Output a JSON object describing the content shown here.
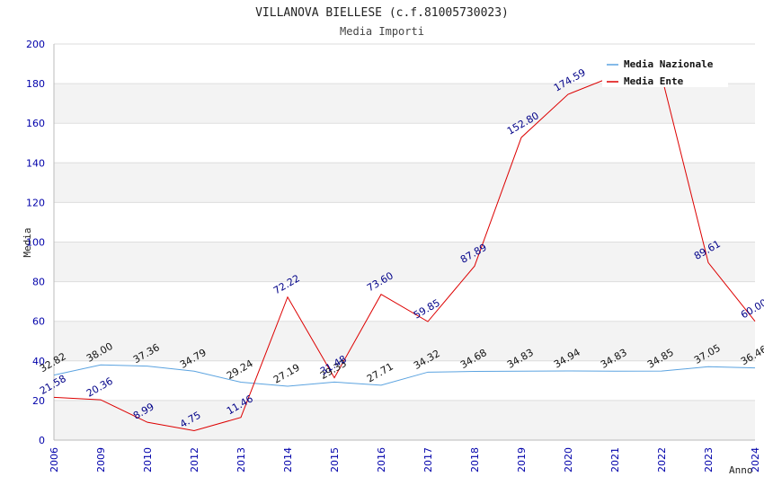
{
  "chart_data": {
    "type": "line",
    "title": "VILLANOVA BIELLESE (c.f.81005730023)",
    "subtitle": "Media Importi",
    "xlabel": "Anno",
    "ylabel": "Media",
    "ylim": [
      0,
      200
    ],
    "yticks": [
      "0",
      "20",
      "40",
      "60",
      "80",
      "100",
      "120",
      "140",
      "160",
      "180",
      "200"
    ],
    "categories": [
      "2006",
      "2009",
      "2010",
      "2012",
      "2013",
      "2014",
      "2015",
      "2016",
      "2017",
      "2018",
      "2019",
      "2020",
      "2021",
      "2022",
      "2023",
      "2024"
    ],
    "legend_position": "top-right",
    "series": [
      {
        "name": "Media Nazionale",
        "color": "#5ba3e0",
        "values": [
          32.82,
          38.0,
          37.36,
          34.79,
          29.24,
          27.19,
          29.33,
          27.71,
          34.32,
          34.68,
          34.83,
          34.94,
          34.83,
          34.85,
          37.05,
          36.46
        ],
        "labels": [
          "32.82",
          "38.00",
          "37.36",
          "34.79",
          "29.24",
          "27.19",
          "29.33",
          "27.71",
          "34.32",
          "34.68",
          "34.83",
          "34.94",
          "34.83",
          "34.85",
          "37.05",
          "36.46"
        ]
      },
      {
        "name": "Media Ente",
        "color": "#dd0000",
        "values": [
          21.58,
          20.36,
          8.99,
          4.75,
          11.46,
          72.22,
          31.48,
          73.6,
          59.85,
          87.89,
          152.8,
          174.59,
          184.0,
          184.0,
          89.61,
          60.0
        ],
        "labels": [
          "21.58",
          "20.36",
          "8.99",
          "4.75",
          "11.46",
          "72.22",
          "31.48",
          "73.60",
          "59.85",
          "87.89",
          "152.80",
          "174.59",
          "",
          "",
          "89.61",
          "60.00"
        ]
      }
    ]
  }
}
